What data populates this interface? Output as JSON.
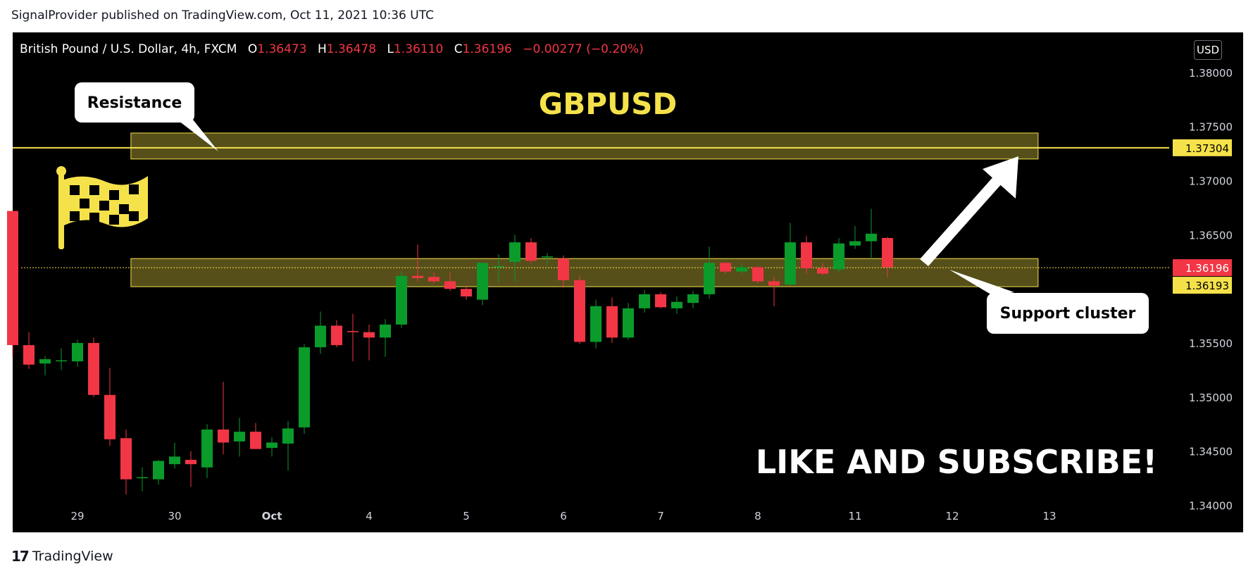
{
  "publisher_line": "SignalProvider published on TradingView.com, Oct 11, 2021 10:36 UTC",
  "header": {
    "symbol": "British Pound / U.S. Dollar, 4h, FXCM",
    "o_label": "O",
    "o_value": "1.36473",
    "h_label": "H",
    "h_value": "1.36478",
    "l_label": "L",
    "l_value": "1.36110",
    "c_label": "C",
    "c_value": "1.36196",
    "change": "−0.00277 (−0.20%)"
  },
  "currency_button": "USD",
  "footer_brand": "TradingView",
  "colors": {
    "up": "#089981",
    "up_fill": "#0a9b2a",
    "down": "#f23645",
    "accent": "#f5e24a",
    "background": "#000000"
  },
  "chart_data": {
    "type": "candlestick",
    "title": "GBPUSD",
    "x_tick_labels": [
      "29",
      "30",
      "Oct",
      "4",
      "5",
      "6",
      "7",
      "8",
      "11",
      "12",
      "13"
    ],
    "y_tick_labels": [
      "1.38000",
      "1.37500",
      "1.37000",
      "1.36500",
      "1.36000",
      "1.35500",
      "1.35000",
      "1.34500",
      "1.34000"
    ],
    "ylim": [
      1.3375,
      1.3837
    ],
    "y_ticks": [
      1.38,
      1.375,
      1.37,
      1.365,
      1.36,
      1.355,
      1.35,
      1.345,
      1.34
    ],
    "x_tick_index": [
      4,
      10,
      16,
      22,
      28,
      34,
      40,
      46,
      52,
      58,
      64
    ],
    "candles": [
      {
        "o": 1.3672,
        "h": 1.3672,
        "l": 1.3537,
        "c": 1.3548
      },
      {
        "o": 1.3548,
        "h": 1.356,
        "l": 1.3526,
        "c": 1.353
      },
      {
        "o": 1.3531,
        "h": 1.3538,
        "l": 1.352,
        "c": 1.3535
      },
      {
        "o": 1.3533,
        "h": 1.3545,
        "l": 1.3525,
        "c": 1.3534
      },
      {
        "o": 1.3533,
        "h": 1.3553,
        "l": 1.3528,
        "c": 1.355
      },
      {
        "o": 1.355,
        "h": 1.3555,
        "l": 1.35,
        "c": 1.3502
      },
      {
        "o": 1.3502,
        "h": 1.3527,
        "l": 1.3455,
        "c": 1.3461
      },
      {
        "o": 1.3462,
        "h": 1.347,
        "l": 1.341,
        "c": 1.3424
      },
      {
        "o": 1.3425,
        "h": 1.3435,
        "l": 1.3413,
        "c": 1.3426
      },
      {
        "o": 1.3424,
        "h": 1.3442,
        "l": 1.3419,
        "c": 1.3441
      },
      {
        "o": 1.3438,
        "h": 1.3458,
        "l": 1.3434,
        "c": 1.3445
      },
      {
        "o": 1.3442,
        "h": 1.345,
        "l": 1.3417,
        "c": 1.3438
      },
      {
        "o": 1.3435,
        "h": 1.3475,
        "l": 1.3425,
        "c": 1.347
      },
      {
        "o": 1.347,
        "h": 1.3514,
        "l": 1.3447,
        "c": 1.3458
      },
      {
        "o": 1.3459,
        "h": 1.3481,
        "l": 1.3445,
        "c": 1.3468
      },
      {
        "o": 1.3468,
        "h": 1.3476,
        "l": 1.3452,
        "c": 1.3452
      },
      {
        "o": 1.3453,
        "h": 1.3463,
        "l": 1.3445,
        "c": 1.3458
      },
      {
        "o": 1.3457,
        "h": 1.3478,
        "l": 1.3432,
        "c": 1.3471
      },
      {
        "o": 1.3472,
        "h": 1.3549,
        "l": 1.3466,
        "c": 1.3546
      },
      {
        "o": 1.3546,
        "h": 1.3579,
        "l": 1.354,
        "c": 1.3566
      },
      {
        "o": 1.3566,
        "h": 1.3571,
        "l": 1.3546,
        "c": 1.3548
      },
      {
        "o": 1.3561,
        "h": 1.3577,
        "l": 1.3533,
        "c": 1.356
      },
      {
        "o": 1.356,
        "h": 1.3567,
        "l": 1.3534,
        "c": 1.3555
      },
      {
        "o": 1.3555,
        "h": 1.3572,
        "l": 1.3537,
        "c": 1.3567
      },
      {
        "o": 1.3567,
        "h": 1.3616,
        "l": 1.3564,
        "c": 1.3612
      },
      {
        "o": 1.3612,
        "h": 1.3641,
        "l": 1.3607,
        "c": 1.361
      },
      {
        "o": 1.3611,
        "h": 1.3615,
        "l": 1.3605,
        "c": 1.3607
      },
      {
        "o": 1.3607,
        "h": 1.3615,
        "l": 1.3598,
        "c": 1.36
      },
      {
        "o": 1.36,
        "h": 1.3603,
        "l": 1.359,
        "c": 1.3593
      },
      {
        "o": 1.359,
        "h": 1.3624,
        "l": 1.3585,
        "c": 1.3624
      },
      {
        "o": 1.3621,
        "h": 1.3632,
        "l": 1.3606,
        "c": 1.3621
      },
      {
        "o": 1.3625,
        "h": 1.365,
        "l": 1.3607,
        "c": 1.3643
      },
      {
        "o": 1.3643,
        "h": 1.3647,
        "l": 1.3624,
        "c": 1.3626
      },
      {
        "o": 1.363,
        "h": 1.3633,
        "l": 1.3622,
        "c": 1.363
      },
      {
        "o": 1.3628,
        "h": 1.3631,
        "l": 1.3601,
        "c": 1.3608
      },
      {
        "o": 1.3608,
        "h": 1.3612,
        "l": 1.3549,
        "c": 1.3551
      },
      {
        "o": 1.3551,
        "h": 1.359,
        "l": 1.3545,
        "c": 1.3584
      },
      {
        "o": 1.3584,
        "h": 1.3592,
        "l": 1.355,
        "c": 1.3555
      },
      {
        "o": 1.3555,
        "h": 1.3587,
        "l": 1.3553,
        "c": 1.3582
      },
      {
        "o": 1.3582,
        "h": 1.3599,
        "l": 1.3578,
        "c": 1.3595
      },
      {
        "o": 1.3595,
        "h": 1.3597,
        "l": 1.3582,
        "c": 1.3583
      },
      {
        "o": 1.3582,
        "h": 1.3593,
        "l": 1.3577,
        "c": 1.3588
      },
      {
        "o": 1.3587,
        "h": 1.3598,
        "l": 1.3582,
        "c": 1.3595
      },
      {
        "o": 1.3595,
        "h": 1.3639,
        "l": 1.3591,
        "c": 1.3624
      },
      {
        "o": 1.3624,
        "h": 1.3625,
        "l": 1.3614,
        "c": 1.3616
      },
      {
        "o": 1.3616,
        "h": 1.3624,
        "l": 1.3614,
        "c": 1.362
      },
      {
        "o": 1.362,
        "h": 1.3621,
        "l": 1.3605,
        "c": 1.3607
      },
      {
        "o": 1.3607,
        "h": 1.3611,
        "l": 1.3584,
        "c": 1.3603
      },
      {
        "o": 1.3604,
        "h": 1.3661,
        "l": 1.3603,
        "c": 1.3643
      },
      {
        "o": 1.3643,
        "h": 1.3649,
        "l": 1.3614,
        "c": 1.3619
      },
      {
        "o": 1.3619,
        "h": 1.3624,
        "l": 1.3613,
        "c": 1.3614
      },
      {
        "o": 1.3618,
        "h": 1.3647,
        "l": 1.3615,
        "c": 1.3642
      },
      {
        "o": 1.364,
        "h": 1.3658,
        "l": 1.3637,
        "c": 1.3644
      },
      {
        "o": 1.3644,
        "h": 1.3674,
        "l": 1.3627,
        "c": 1.3651
      },
      {
        "o": 1.3647,
        "h": 1.3648,
        "l": 1.3611,
        "c": 1.362
      }
    ],
    "n_slots": 66,
    "zones": [
      {
        "name": "resistance-zone",
        "from": 1.372,
        "to": 1.3744,
        "x_from": 7.3,
        "x_to": 63.3
      },
      {
        "name": "support-zone",
        "from": 1.3602,
        "to": 1.3628,
        "x_from": 7.3,
        "x_to": 63.3
      }
    ],
    "lines": [
      {
        "name": "resistance-line",
        "value": 1.37304,
        "label": "1.37304"
      },
      {
        "name": "last-price-line",
        "value": 1.36196,
        "label": "1.36196"
      },
      {
        "name": "support-line",
        "value": 1.36193,
        "label": "1.36193"
      }
    ],
    "annotations": {
      "resistance_label": "Resistance",
      "support_label": "Support cluster",
      "cta": "LIKE AND SUBSCRIBE!"
    }
  }
}
